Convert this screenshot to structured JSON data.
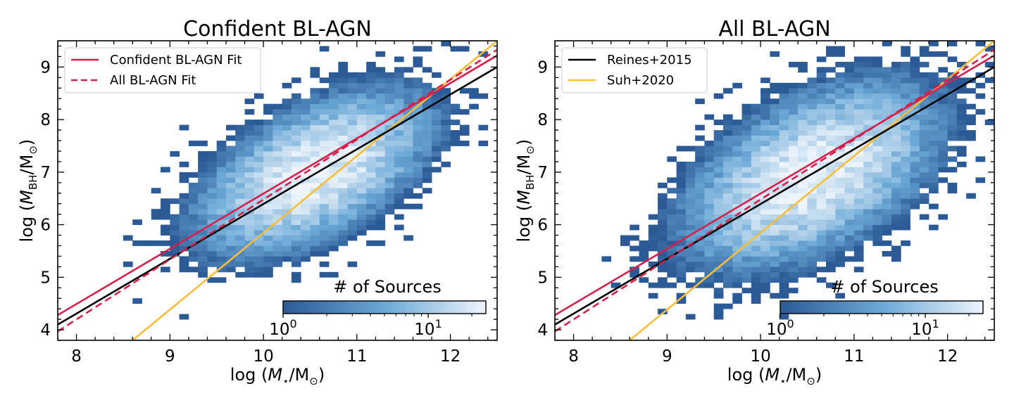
{
  "chart_data": [
    {
      "type": "heatmap",
      "title": "Confident BL-AGN",
      "xlabel": "log (M⋆/M⊙)",
      "ylabel": "log (MBH/M⊙)",
      "xlim": [
        7.8,
        12.5
      ],
      "ylim": [
        3.8,
        9.5
      ],
      "xticks": [
        8,
        9,
        10,
        11,
        12
      ],
      "yticks": [
        4,
        5,
        6,
        7,
        8,
        9
      ],
      "legend_position": "upper-left",
      "legend": [
        {
          "label": "Confident BL-AGN Fit",
          "color": "#d6204a",
          "style": "solid"
        },
        {
          "label": "All BL-AGN Fit",
          "color": "#d6204a",
          "style": "dashed"
        }
      ],
      "lines": [
        {
          "name": "Confident BL-AGN Fit",
          "color": "#d6204a",
          "style": "solid",
          "x": [
            7.8,
            12.5
          ],
          "y": [
            4.28,
            9.22
          ]
        },
        {
          "name": "All BL-AGN Fit",
          "color": "#d6204a",
          "style": "dashed",
          "x": [
            7.8,
            12.5
          ],
          "y": [
            3.97,
            9.33
          ]
        },
        {
          "name": "Reines+2015",
          "color": "#000000",
          "style": "solid",
          "x": [
            7.8,
            12.5
          ],
          "y": [
            4.1,
            9.0
          ]
        },
        {
          "name": "Suh+2020",
          "color": "#f9bd3a",
          "style": "solid",
          "x": [
            8.6,
            12.5
          ],
          "y": [
            3.8,
            9.5
          ]
        }
      ],
      "density": {
        "bin_width": 0.1,
        "x_center": 10.55,
        "y_center": 7.0,
        "x_spread": 0.6,
        "y_spread": 0.75,
        "correlation": 0.55,
        "peak_count": 25
      },
      "colorbar": {
        "label": "# of Sources",
        "log_scale": true,
        "range": [
          1,
          25
        ],
        "ticks": [
          {
            "base": "10",
            "exp": "0",
            "value": 1
          },
          {
            "base": "10",
            "exp": "1",
            "value": 10
          }
        ],
        "color_low": "#2c5a96",
        "color_mid": "#6aa8d6",
        "color_high": "#edf4fb"
      }
    },
    {
      "type": "heatmap",
      "title": "All BL-AGN",
      "xlabel": "log (M⋆/M⊙)",
      "ylabel": "log (MBH/M⊙)",
      "xlim": [
        7.8,
        12.5
      ],
      "ylim": [
        3.8,
        9.5
      ],
      "xticks": [
        8,
        9,
        10,
        11,
        12
      ],
      "yticks": [
        4,
        5,
        6,
        7,
        8,
        9
      ],
      "legend_position": "upper-left",
      "legend": [
        {
          "label": "Reines+2015",
          "color": "#000000",
          "style": "solid"
        },
        {
          "label": "Suh+2020",
          "color": "#f9bd3a",
          "style": "solid"
        }
      ],
      "lines": [
        {
          "name": "Confident BL-AGN Fit",
          "color": "#d6204a",
          "style": "solid",
          "x": [
            7.8,
            12.5
          ],
          "y": [
            4.28,
            9.22
          ]
        },
        {
          "name": "All BL-AGN Fit",
          "color": "#d6204a",
          "style": "dashed",
          "x": [
            7.8,
            12.5
          ],
          "y": [
            3.97,
            9.33
          ]
        },
        {
          "name": "Reines+2015",
          "color": "#000000",
          "style": "solid",
          "x": [
            7.8,
            12.5
          ],
          "y": [
            4.1,
            9.0
          ]
        },
        {
          "name": "Suh+2020",
          "color": "#f9bd3a",
          "style": "solid",
          "x": [
            8.6,
            12.5
          ],
          "y": [
            3.8,
            9.5
          ]
        }
      ],
      "density": {
        "bin_width": 0.1,
        "x_center": 10.55,
        "y_center": 6.95,
        "x_spread": 0.65,
        "y_spread": 0.85,
        "correlation": 0.5,
        "peak_count": 25
      },
      "colorbar": {
        "label": "# of Sources",
        "log_scale": true,
        "range": [
          1,
          25
        ],
        "ticks": [
          {
            "base": "10",
            "exp": "0",
            "value": 1
          },
          {
            "base": "10",
            "exp": "1",
            "value": 10
          }
        ],
        "color_low": "#2c5a96",
        "color_mid": "#6aa8d6",
        "color_high": "#edf4fb"
      }
    }
  ]
}
